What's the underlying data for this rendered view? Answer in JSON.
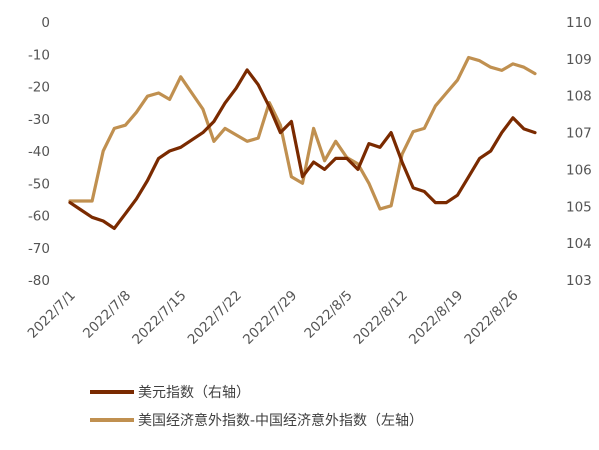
{
  "chart_data": {
    "type": "line",
    "dual_axis": true,
    "title": "",
    "x_dates": [
      "2022/7/1",
      "2022/7/4",
      "2022/7/5",
      "2022/7/6",
      "2022/7/7",
      "2022/7/8",
      "2022/7/11",
      "2022/7/12",
      "2022/7/13",
      "2022/7/14",
      "2022/7/15",
      "2022/7/18",
      "2022/7/19",
      "2022/7/20",
      "2022/7/21",
      "2022/7/22",
      "2022/7/25",
      "2022/7/26",
      "2022/7/27",
      "2022/7/28",
      "2022/7/29",
      "2022/8/1",
      "2022/8/2",
      "2022/8/3",
      "2022/8/4",
      "2022/8/5",
      "2022/8/8",
      "2022/8/9",
      "2022/8/10",
      "2022/8/11",
      "2022/8/12",
      "2022/8/15",
      "2022/8/16",
      "2022/8/17",
      "2022/8/18",
      "2022/8/19",
      "2022/8/22",
      "2022/8/23",
      "2022/8/24",
      "2022/8/25",
      "2022/8/26",
      "2022/8/29",
      "2022/8/30"
    ],
    "x_tick_labels": [
      "2022/7/1",
      "2022/7/8",
      "2022/7/15",
      "2022/7/22",
      "2022/7/29",
      "2022/8/5",
      "2022/8/12",
      "2022/8/19",
      "2022/8/26"
    ],
    "y_left": {
      "min": -80,
      "max": 0,
      "step": 10,
      "ticks": [
        "0",
        "-10",
        "-20",
        "-30",
        "-40",
        "-50",
        "-60",
        "-70",
        "-80"
      ]
    },
    "y_right": {
      "min": 103,
      "max": 110,
      "step": 1,
      "ticks": [
        "110",
        "109",
        "108",
        "107",
        "106",
        "105",
        "104",
        "103"
      ]
    },
    "series": [
      {
        "name": "美元指数（右轴）",
        "axis": "right",
        "color": "#7A2A00",
        "values": [
          105.1,
          104.9,
          104.7,
          104.6,
          104.4,
          104.8,
          105.2,
          105.7,
          106.3,
          106.5,
          106.6,
          106.8,
          107.0,
          107.3,
          107.8,
          108.2,
          108.7,
          108.3,
          107.7,
          107.0,
          107.3,
          105.8,
          106.2,
          106.0,
          106.3,
          106.3,
          106.0,
          106.7,
          106.6,
          107.0,
          106.2,
          105.5,
          105.4,
          105.1,
          105.1,
          105.3,
          105.8,
          106.3,
          106.5,
          107.0,
          107.4,
          107.1,
          107.0
        ]
      },
      {
        "name": "美国经济意外指数-中国经济意外指数（左轴）",
        "axis": "left",
        "color": "#C09050",
        "values": [
          -55.5,
          -55.5,
          -55.5,
          -40,
          -33,
          -32,
          -28,
          -23,
          -22,
          -24,
          -17,
          -22,
          -27,
          -37,
          -33,
          -35,
          -37,
          -36,
          -25,
          -32,
          -48,
          -50,
          -33,
          -43,
          -37,
          -42,
          -44,
          -50,
          -58,
          -57,
          -41,
          -34,
          -33,
          -26,
          -22,
          -18,
          -11,
          -12,
          -14,
          -15,
          -13,
          -14,
          -16
        ]
      }
    ],
    "grid": false,
    "legend_position": "bottom-left"
  },
  "legend": {
    "usd_label": "美元指数（右轴）",
    "spread_label": "美国经济意外指数-中国经济意外指数（左轴）"
  }
}
